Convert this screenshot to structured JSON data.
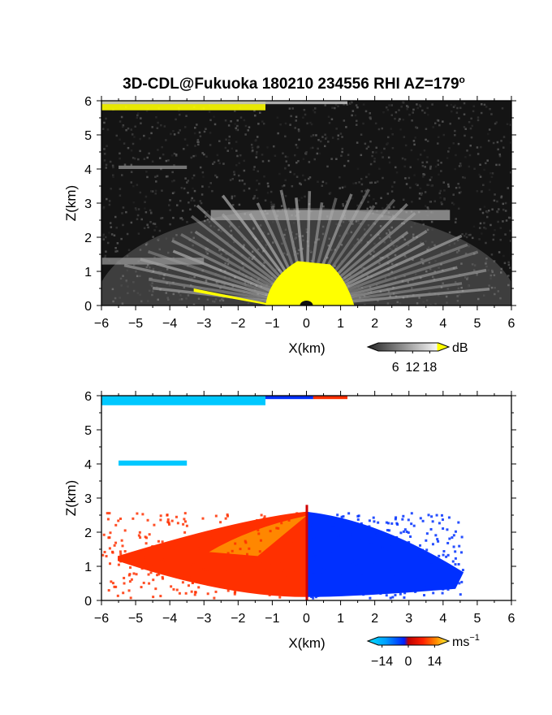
{
  "title": "3D-CDL@Fukuoka 180210 234556 RHI AZ=179",
  "title_superscript": "o",
  "chart_data": [
    {
      "type": "heatmap",
      "panel": "reflectivity",
      "xlabel": "X(km)",
      "ylabel": "Z(km)",
      "xlim": [
        -6,
        6
      ],
      "ylim": [
        0,
        6
      ],
      "xticks": [
        "-6",
        "-5",
        "-4",
        "-3",
        "-2",
        "-1",
        "0",
        "1",
        "2",
        "3",
        "4",
        "5",
        "6"
      ],
      "yticks": [
        "0",
        "1",
        "2",
        "3",
        "4",
        "5",
        "6"
      ],
      "colorbar": {
        "unit": "dB",
        "ticks": [
          "6",
          "12",
          "18"
        ],
        "range": [
          0,
          21
        ]
      },
      "colors": {
        "background": "#141414",
        "low": "#3a3a3a",
        "high": "#f2f2f2",
        "saturated": "#ffff00"
      },
      "features": [
        {
          "kind": "cloud-layer",
          "x": [
            -6,
            -1.2
          ],
          "z": [
            5.72,
            6.0
          ],
          "value": 19
        },
        {
          "kind": "cloud-layer",
          "x": [
            -6,
            1.2
          ],
          "z": [
            5.9,
            6.0
          ],
          "value": 12
        },
        {
          "kind": "layer",
          "x": [
            -5.5,
            -3.5
          ],
          "z": [
            4.0,
            4.1
          ],
          "value": 9
        },
        {
          "kind": "layer",
          "x": [
            -2.8,
            4.2
          ],
          "z": [
            2.5,
            2.8
          ],
          "value": 11
        },
        {
          "kind": "layer",
          "x": [
            -6,
            -3.0
          ],
          "z": [
            1.2,
            1.4
          ],
          "value": 9
        },
        {
          "kind": "near-field",
          "x": [
            -1.2,
            1.4
          ],
          "z": [
            0,
            1.3
          ],
          "value": 20
        },
        {
          "kind": "surface",
          "x": [
            -3.3,
            -0.8
          ],
          "z": [
            0,
            0.5
          ],
          "value": 20
        }
      ]
    },
    {
      "type": "heatmap",
      "panel": "doppler-velocity",
      "xlabel": "X(km)",
      "ylabel": "Z(km)",
      "xlim": [
        -6,
        6
      ],
      "ylim": [
        0,
        6
      ],
      "xticks": [
        "-6",
        "-5",
        "-4",
        "-3",
        "-2",
        "-1",
        "0",
        "1",
        "2",
        "3",
        "4",
        "5",
        "6"
      ],
      "yticks": [
        "0",
        "1",
        "2",
        "3",
        "4",
        "5",
        "6"
      ],
      "colorbar": {
        "unit": "ms",
        "unit_superscript": "−1",
        "ticks": [
          "−14",
          "0",
          "14"
        ],
        "range": [
          -16,
          16
        ]
      },
      "colors": {
        "negative_far": "#00c8ff",
        "negative": "#0030ff",
        "zero": "#d00000",
        "positive": "#ff3000",
        "positive_far": "#ffd000"
      },
      "features": [
        {
          "kind": "layer",
          "x": [
            -6,
            -1.2
          ],
          "z": [
            5.72,
            6.0
          ],
          "value": -13
        },
        {
          "kind": "layer",
          "x": [
            -1.2,
            0.2
          ],
          "z": [
            5.9,
            6.0
          ],
          "value": -8
        },
        {
          "kind": "layer",
          "x": [
            0.2,
            1.2
          ],
          "z": [
            5.9,
            6.0
          ],
          "value": 3
        },
        {
          "kind": "layer",
          "x": [
            -5.5,
            -3.5
          ],
          "z": [
            3.95,
            4.1
          ],
          "value": -12
        },
        {
          "kind": "flow",
          "x": [
            -6,
            0
          ],
          "z": [
            0,
            2.8
          ],
          "value": 3
        },
        {
          "kind": "flow",
          "x": [
            0,
            4.6
          ],
          "z": [
            0,
            2.8
          ],
          "value": -5
        }
      ]
    }
  ]
}
